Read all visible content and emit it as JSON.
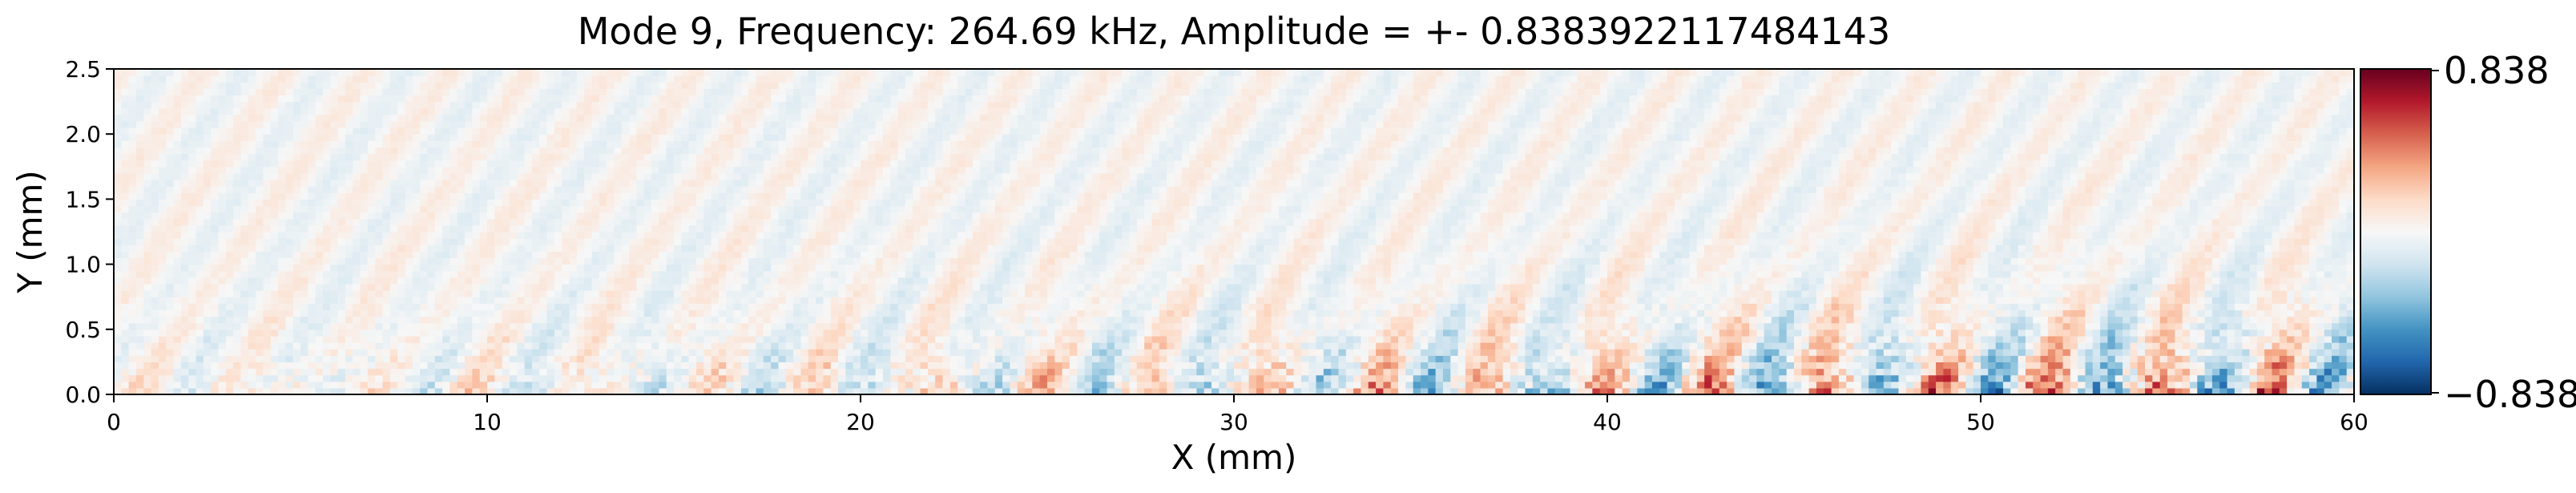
{
  "chart_data": {
    "type": "heatmap",
    "title": "Mode 9, Frequency: 264.69 kHz, Amplitude = +- 0.8383922117484143",
    "xlabel": "X (mm)",
    "ylabel": "Y (mm)",
    "xlim": [
      0,
      60
    ],
    "ylim": [
      0,
      2.5
    ],
    "x_ticks": [
      0,
      10,
      20,
      30,
      40,
      50,
      60
    ],
    "x_tick_labels": [
      "0",
      "10",
      "20",
      "30",
      "40",
      "50",
      "60"
    ],
    "y_ticks": [
      0.0,
      0.5,
      1.0,
      1.5,
      2.0,
      2.5
    ],
    "y_tick_labels": [
      "0.0",
      "0.5",
      "1.0",
      "1.5",
      "2.0",
      "2.5"
    ],
    "colormap": "RdBu_r",
    "colormap_stops": [
      "#053061",
      "#2166ac",
      "#4393c3",
      "#92c5de",
      "#d1e5f0",
      "#f7f7f7",
      "#fddbc7",
      "#f4a582",
      "#d6604d",
      "#b2182b",
      "#67001f"
    ],
    "colorbar": {
      "min": -0.838,
      "max": 0.838,
      "tick_labels": [
        "0.838",
        "−0.838"
      ]
    },
    "amplitude": 0.8383922117484143,
    "grid": false,
    "description_pattern": "noisy field; strongest fluctuations near y<0.6 mm, growing amplitude toward larger x"
  }
}
